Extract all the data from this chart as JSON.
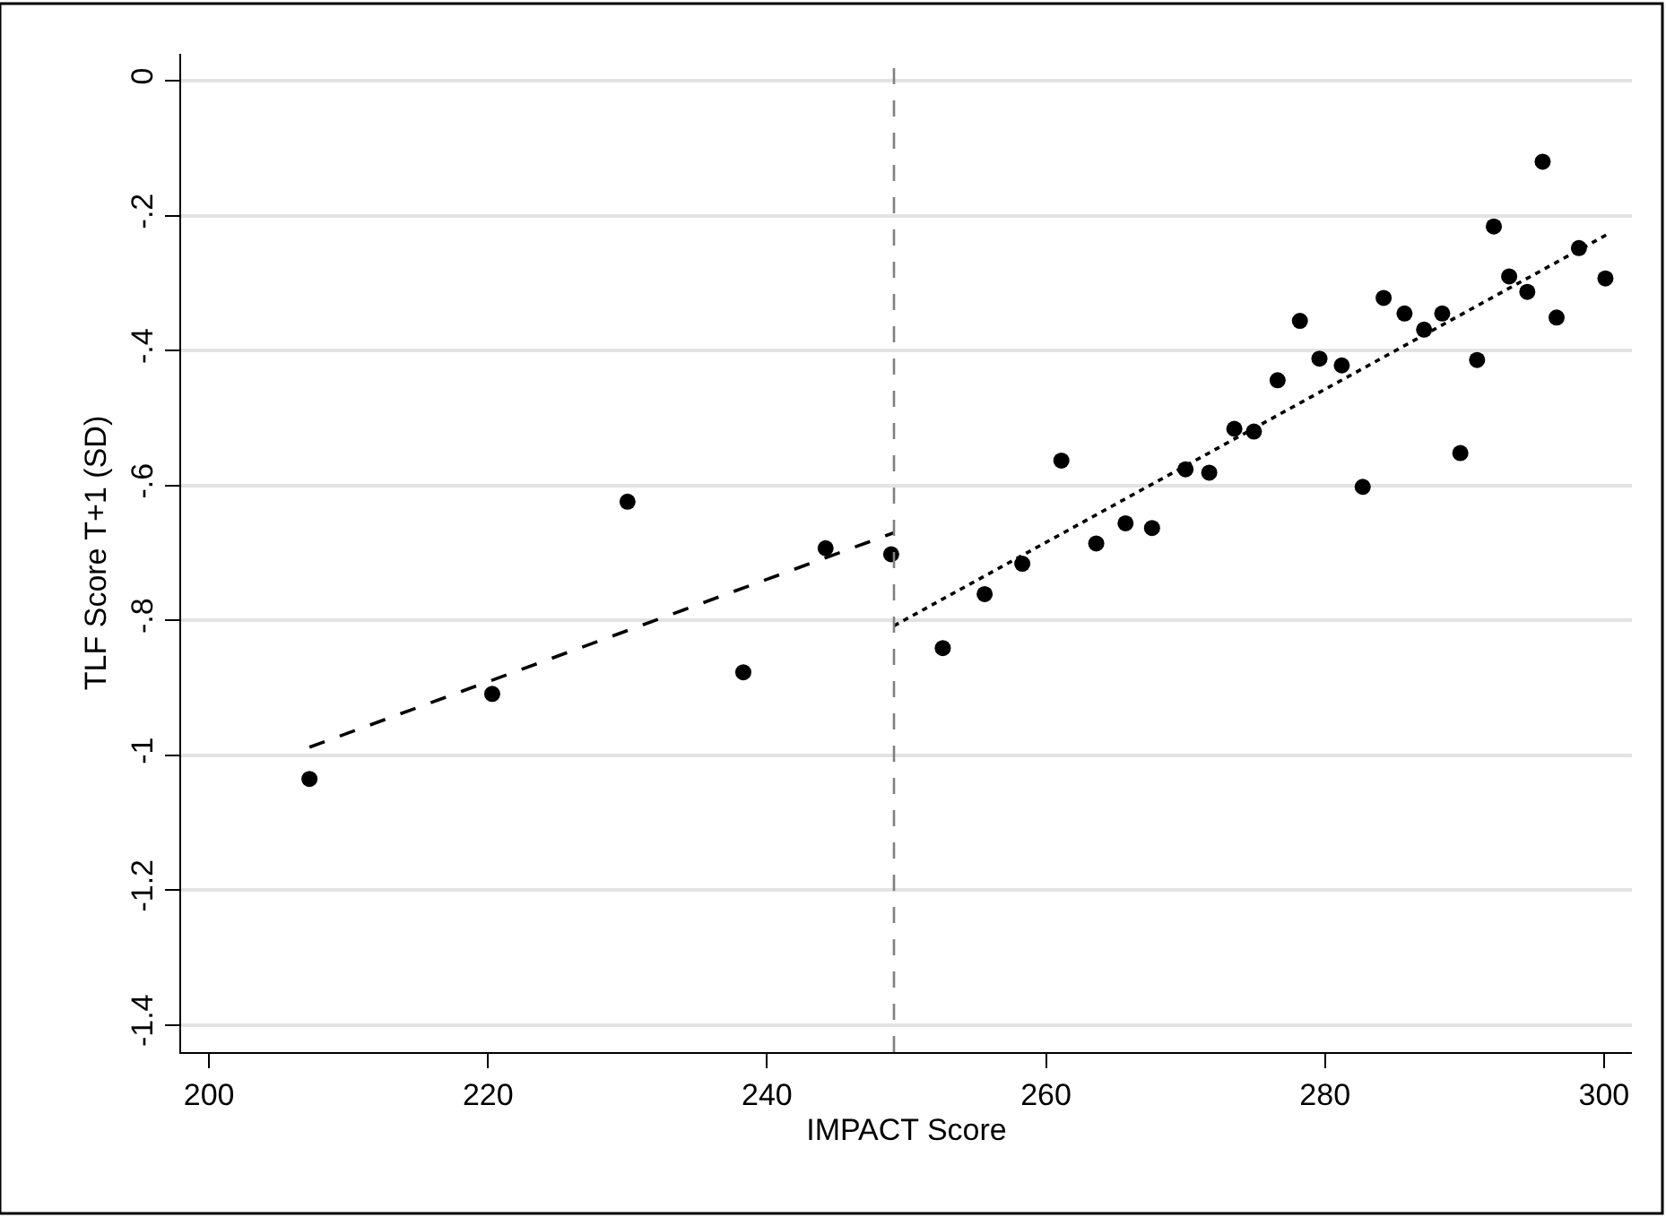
{
  "chart_data": {
    "type": "scatter",
    "xlabel": "IMPACT Score",
    "ylabel": "TLF Score T+1 (SD)",
    "xlim": [
      198,
      302
    ],
    "xticks": [
      200,
      220,
      240,
      260,
      280,
      300
    ],
    "ylim": [
      -1.44,
      0.04
    ],
    "yticks": [
      0,
      {
        "value": -0.2,
        "label": "-.2"
      },
      {
        "value": -0.4,
        "label": "-.4"
      },
      {
        "value": -0.6,
        "label": "-.6"
      },
      {
        "value": -0.8,
        "label": "-.8"
      },
      -1,
      {
        "value": -1.2,
        "label": "-1.2"
      },
      {
        "value": -1.4,
        "label": "-1.4"
      }
    ],
    "grid": "y",
    "series": [
      {
        "color": "#000000",
        "marker": "circle",
        "x": [
          207.2,
          220.3,
          230.0,
          238.3,
          244.2,
          248.9,
          252.6,
          255.6,
          258.3,
          261.1,
          263.6,
          265.7,
          267.6,
          270.0,
          271.7,
          273.5,
          274.9,
          276.6,
          278.2,
          279.6,
          281.2,
          282.7,
          284.2,
          285.7,
          287.1,
          288.4,
          289.7,
          290.9,
          292.1,
          293.2,
          294.5,
          295.6,
          296.6,
          298.2,
          300.1
        ],
        "values": [
          -1.035,
          -0.909,
          -0.624,
          -0.877,
          -0.693,
          -0.702,
          -0.841,
          -0.761,
          -0.716,
          -0.563,
          -0.686,
          -0.656,
          -0.663,
          -0.576,
          -0.581,
          -0.516,
          -0.52,
          -0.444,
          -0.356,
          -0.412,
          -0.422,
          -0.602,
          -0.322,
          -0.345,
          -0.369,
          -0.345,
          -0.552,
          -0.414,
          -0.216,
          -0.29,
          -0.313,
          -0.12,
          -0.351,
          -0.248,
          -0.293
        ]
      },
      {
        "type": "line",
        "color": "#000000",
        "marker": "none",
        "line_style": "dashed",
        "x": [
          207.2,
          249.1
        ],
        "values": [
          -0.988,
          -0.67
        ]
      },
      {
        "type": "line",
        "color": "#000000",
        "marker": "none",
        "line_style": "dotted",
        "x": [
          249.1,
          300.3
        ],
        "values": [
          -0.808,
          -0.227
        ]
      }
    ],
    "ref_lines": [
      {
        "axis": "x",
        "value": 249.1,
        "label": null,
        "color": "#808080",
        "line_style": "dashed"
      }
    ]
  }
}
